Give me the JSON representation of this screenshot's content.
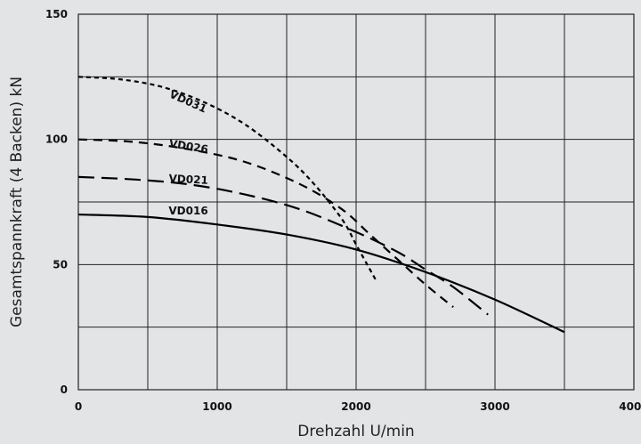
{
  "chart_data": {
    "type": "line",
    "title": "",
    "xlabel": "Drehzahl U/min",
    "ylabel": "Gesamtspannkraft (4 Backen) kN",
    "xlim": [
      0,
      4000
    ],
    "ylim": [
      0,
      150
    ],
    "xticks": [
      0,
      1000,
      2000,
      3000,
      4000
    ],
    "yticks": [
      0,
      50,
      100,
      150
    ],
    "xtick_labels": [
      "0",
      "1000",
      "2000",
      "3000",
      "4000"
    ],
    "ytick_labels": [
      "0",
      "50",
      "100",
      "150"
    ],
    "grid": {
      "x_step": 500,
      "y_step": 25,
      "on": true
    },
    "legend": "inline labels",
    "series": [
      {
        "name": "VD031",
        "style": "short-dash",
        "x": [
          0,
          300,
          600,
          900,
          1200,
          1500,
          1700,
          1900,
          2000,
          2100,
          2150
        ],
        "y": [
          125,
          124,
          121,
          115,
          106,
          93,
          82,
          68,
          58,
          48,
          43
        ]
      },
      {
        "name": "VD026",
        "style": "medium-dash",
        "x": [
          0,
          400,
          800,
          1200,
          1600,
          1900,
          2100,
          2300,
          2500,
          2700
        ],
        "y": [
          100,
          99,
          96,
          91,
          82,
          72,
          62,
          52,
          42,
          33
        ]
      },
      {
        "name": "VD021",
        "style": "long-dash",
        "x": [
          0,
          400,
          800,
          1200,
          1600,
          2000,
          2300,
          2500,
          2700,
          2950
        ],
        "y": [
          85,
          84,
          82,
          78,
          72,
          63,
          55,
          48,
          41,
          30
        ]
      },
      {
        "name": "VD016",
        "style": "solid",
        "x": [
          0,
          500,
          1000,
          1500,
          2000,
          2500,
          3000,
          3500
        ],
        "y": [
          70,
          69,
          66,
          62,
          56,
          47,
          36,
          23
        ]
      }
    ]
  }
}
